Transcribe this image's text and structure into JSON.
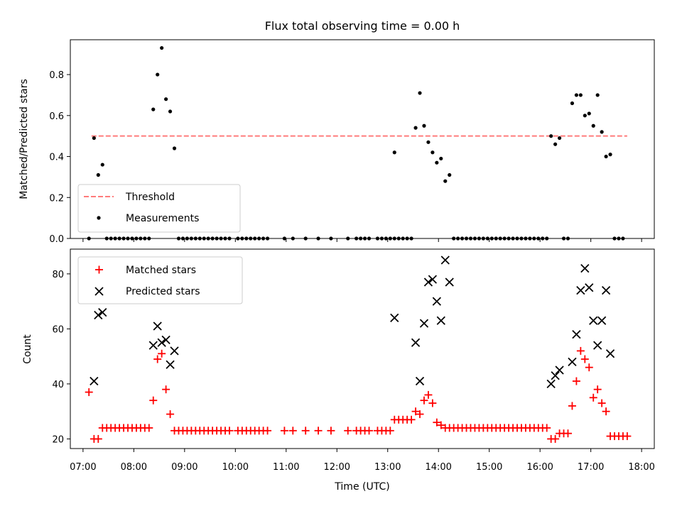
{
  "chart_data": [
    {
      "type": "scatter",
      "title": "Flux total observing time = 0.00 h",
      "ylabel": "Matched/Predicted stars",
      "ylim": [
        0,
        0.97
      ],
      "xlim": [
        "06:45",
        "18:15"
      ],
      "yticks": [
        "0.0",
        "0.2",
        "0.4",
        "0.6",
        "0.8"
      ],
      "grid": false,
      "legend": "lower-left",
      "threshold": {
        "name": "Threshold",
        "y": 0.5,
        "x_start": "07:10",
        "x_end": "17:43",
        "style": "dashed",
        "color": "#ff7b7b"
      },
      "series": [
        {
          "name": "Measurements",
          "marker": "dot",
          "color": "#000000",
          "points": [
            [
              "07:07",
              0.0
            ],
            [
              "07:13",
              0.49
            ],
            [
              "07:18",
              0.31
            ],
            [
              "07:23",
              0.36
            ],
            [
              "07:28",
              0.0
            ],
            [
              "07:33",
              0.0
            ],
            [
              "07:38",
              0.0
            ],
            [
              "07:43",
              0.0
            ],
            [
              "07:48",
              0.0
            ],
            [
              "07:53",
              0.0
            ],
            [
              "07:58",
              0.0
            ],
            [
              "08:03",
              0.0
            ],
            [
              "08:08",
              0.0
            ],
            [
              "08:13",
              0.0
            ],
            [
              "08:18",
              0.0
            ],
            [
              "08:23",
              0.63
            ],
            [
              "08:28",
              0.8
            ],
            [
              "08:33",
              0.93
            ],
            [
              "08:38",
              0.68
            ],
            [
              "08:43",
              0.62
            ],
            [
              "08:48",
              0.44
            ],
            [
              "08:53",
              0.0
            ],
            [
              "08:58",
              0.0
            ],
            [
              "09:03",
              0.0
            ],
            [
              "09:08",
              0.0
            ],
            [
              "09:13",
              0.0
            ],
            [
              "09:18",
              0.0
            ],
            [
              "09:23",
              0.0
            ],
            [
              "09:28",
              0.0
            ],
            [
              "09:33",
              0.0
            ],
            [
              "09:38",
              0.0
            ],
            [
              "09:43",
              0.0
            ],
            [
              "09:48",
              0.0
            ],
            [
              "09:53",
              0.0
            ],
            [
              "10:03",
              0.0
            ],
            [
              "10:08",
              0.0
            ],
            [
              "10:13",
              0.0
            ],
            [
              "10:18",
              0.0
            ],
            [
              "10:23",
              0.0
            ],
            [
              "10:28",
              0.0
            ],
            [
              "10:33",
              0.0
            ],
            [
              "10:38",
              0.0
            ],
            [
              "10:58",
              0.0
            ],
            [
              "11:08",
              0.0
            ],
            [
              "11:23",
              0.0
            ],
            [
              "11:38",
              0.0
            ],
            [
              "11:53",
              0.0
            ],
            [
              "12:13",
              0.0
            ],
            [
              "12:23",
              0.0
            ],
            [
              "12:28",
              0.0
            ],
            [
              "12:33",
              0.0
            ],
            [
              "12:38",
              0.0
            ],
            [
              "12:48",
              0.0
            ],
            [
              "12:53",
              0.0
            ],
            [
              "12:58",
              0.0
            ],
            [
              "13:03",
              0.0
            ],
            [
              "13:08",
              0.0
            ],
            [
              "13:08",
              0.42
            ],
            [
              "13:13",
              0.0
            ],
            [
              "13:18",
              0.0
            ],
            [
              "13:23",
              0.0
            ],
            [
              "13:28",
              0.0
            ],
            [
              "13:33",
              0.54
            ],
            [
              "13:38",
              0.71
            ],
            [
              "13:43",
              0.55
            ],
            [
              "13:48",
              0.47
            ],
            [
              "13:53",
              0.42
            ],
            [
              "13:58",
              0.37
            ],
            [
              "14:03",
              0.39
            ],
            [
              "14:08",
              0.28
            ],
            [
              "14:13",
              0.31
            ],
            [
              "14:18",
              0.0
            ],
            [
              "14:23",
              0.0
            ],
            [
              "14:28",
              0.0
            ],
            [
              "14:33",
              0.0
            ],
            [
              "14:38",
              0.0
            ],
            [
              "14:43",
              0.0
            ],
            [
              "14:48",
              0.0
            ],
            [
              "14:53",
              0.0
            ],
            [
              "14:58",
              0.0
            ],
            [
              "15:03",
              0.0
            ],
            [
              "15:08",
              0.0
            ],
            [
              "15:13",
              0.0
            ],
            [
              "15:18",
              0.0
            ],
            [
              "15:23",
              0.0
            ],
            [
              "15:28",
              0.0
            ],
            [
              "15:33",
              0.0
            ],
            [
              "15:38",
              0.0
            ],
            [
              "15:43",
              0.0
            ],
            [
              "15:48",
              0.0
            ],
            [
              "15:53",
              0.0
            ],
            [
              "15:58",
              0.0
            ],
            [
              "16:03",
              0.0
            ],
            [
              "16:08",
              0.0
            ],
            [
              "16:13",
              0.5
            ],
            [
              "16:18",
              0.46
            ],
            [
              "16:23",
              0.49
            ],
            [
              "16:28",
              0.0
            ],
            [
              "16:33",
              0.0
            ],
            [
              "16:38",
              0.66
            ],
            [
              "16:43",
              0.7
            ],
            [
              "16:48",
              0.7
            ],
            [
              "16:53",
              0.6
            ],
            [
              "16:58",
              0.61
            ],
            [
              "17:03",
              0.55
            ],
            [
              "17:08",
              0.7
            ],
            [
              "17:13",
              0.52
            ],
            [
              "17:18",
              0.4
            ],
            [
              "17:23",
              0.41
            ],
            [
              "17:28",
              0.0
            ],
            [
              "17:33",
              0.0
            ],
            [
              "17:38",
              0.0
            ]
          ]
        }
      ]
    },
    {
      "type": "scatter",
      "xlabel": "Time (UTC)",
      "ylabel": "Count",
      "ylim": [
        16.5,
        89
      ],
      "xlim": [
        "06:45",
        "18:15"
      ],
      "xticks": [
        "07:00",
        "08:00",
        "09:00",
        "10:00",
        "11:00",
        "12:00",
        "13:00",
        "14:00",
        "15:00",
        "16:00",
        "17:00",
        "18:00"
      ],
      "yticks": [
        "20",
        "40",
        "60",
        "80"
      ],
      "grid": false,
      "legend": "top-left",
      "series": [
        {
          "name": "Matched stars",
          "marker": "plus",
          "color": "#ff0000",
          "points": [
            [
              "07:07",
              37
            ],
            [
              "07:13",
              20
            ],
            [
              "07:18",
              20
            ],
            [
              "07:23",
              24
            ],
            [
              "07:28",
              24
            ],
            [
              "07:33",
              24
            ],
            [
              "07:38",
              24
            ],
            [
              "07:43",
              24
            ],
            [
              "07:48",
              24
            ],
            [
              "07:53",
              24
            ],
            [
              "07:58",
              24
            ],
            [
              "08:03",
              24
            ],
            [
              "08:08",
              24
            ],
            [
              "08:13",
              24
            ],
            [
              "08:18",
              24
            ],
            [
              "08:23",
              34
            ],
            [
              "08:28",
              49
            ],
            [
              "08:33",
              51
            ],
            [
              "08:38",
              38
            ],
            [
              "08:43",
              29
            ],
            [
              "08:48",
              23
            ],
            [
              "08:53",
              23
            ],
            [
              "08:58",
              23
            ],
            [
              "09:03",
              23
            ],
            [
              "09:08",
              23
            ],
            [
              "09:13",
              23
            ],
            [
              "09:18",
              23
            ],
            [
              "09:23",
              23
            ],
            [
              "09:28",
              23
            ],
            [
              "09:33",
              23
            ],
            [
              "09:38",
              23
            ],
            [
              "09:43",
              23
            ],
            [
              "09:48",
              23
            ],
            [
              "09:53",
              23
            ],
            [
              "10:03",
              23
            ],
            [
              "10:08",
              23
            ],
            [
              "10:13",
              23
            ],
            [
              "10:18",
              23
            ],
            [
              "10:23",
              23
            ],
            [
              "10:28",
              23
            ],
            [
              "10:33",
              23
            ],
            [
              "10:38",
              23
            ],
            [
              "10:58",
              23
            ],
            [
              "11:08",
              23
            ],
            [
              "11:23",
              23
            ],
            [
              "11:38",
              23
            ],
            [
              "11:53",
              23
            ],
            [
              "12:13",
              23
            ],
            [
              "12:23",
              23
            ],
            [
              "12:28",
              23
            ],
            [
              "12:33",
              23
            ],
            [
              "12:38",
              23
            ],
            [
              "12:48",
              23
            ],
            [
              "12:53",
              23
            ],
            [
              "12:58",
              23
            ],
            [
              "13:03",
              23
            ],
            [
              "13:08",
              27
            ],
            [
              "13:13",
              27
            ],
            [
              "13:18",
              27
            ],
            [
              "13:23",
              27
            ],
            [
              "13:28",
              27
            ],
            [
              "13:33",
              30
            ],
            [
              "13:38",
              29
            ],
            [
              "13:43",
              34
            ],
            [
              "13:48",
              36
            ],
            [
              "13:53",
              33
            ],
            [
              "13:58",
              26
            ],
            [
              "14:03",
              25
            ],
            [
              "14:08",
              24
            ],
            [
              "14:13",
              24
            ],
            [
              "14:18",
              24
            ],
            [
              "14:23",
              24
            ],
            [
              "14:28",
              24
            ],
            [
              "14:33",
              24
            ],
            [
              "14:38",
              24
            ],
            [
              "14:43",
              24
            ],
            [
              "14:48",
              24
            ],
            [
              "14:53",
              24
            ],
            [
              "14:58",
              24
            ],
            [
              "15:03",
              24
            ],
            [
              "15:08",
              24
            ],
            [
              "15:13",
              24
            ],
            [
              "15:18",
              24
            ],
            [
              "15:23",
              24
            ],
            [
              "15:28",
              24
            ],
            [
              "15:33",
              24
            ],
            [
              "15:38",
              24
            ],
            [
              "15:43",
              24
            ],
            [
              "15:48",
              24
            ],
            [
              "15:53",
              24
            ],
            [
              "15:58",
              24
            ],
            [
              "16:03",
              24
            ],
            [
              "16:08",
              24
            ],
            [
              "16:13",
              20
            ],
            [
              "16:18",
              20
            ],
            [
              "16:23",
              22
            ],
            [
              "16:28",
              22
            ],
            [
              "16:33",
              22
            ],
            [
              "16:38",
              32
            ],
            [
              "16:43",
              41
            ],
            [
              "16:48",
              52
            ],
            [
              "16:53",
              49
            ],
            [
              "16:58",
              46
            ],
            [
              "17:03",
              35
            ],
            [
              "17:08",
              38
            ],
            [
              "17:13",
              33
            ],
            [
              "17:18",
              30
            ],
            [
              "17:23",
              21
            ],
            [
              "17:28",
              21
            ],
            [
              "17:33",
              21
            ],
            [
              "17:38",
              21
            ],
            [
              "17:43",
              21
            ]
          ]
        },
        {
          "name": "Predicted stars",
          "marker": "x",
          "color": "#000000",
          "points": [
            [
              "07:13",
              41
            ],
            [
              "07:18",
              65
            ],
            [
              "07:23",
              66
            ],
            [
              "08:23",
              54
            ],
            [
              "08:28",
              61
            ],
            [
              "08:33",
              55
            ],
            [
              "08:38",
              56
            ],
            [
              "08:43",
              47
            ],
            [
              "08:48",
              52
            ],
            [
              "13:08",
              64
            ],
            [
              "13:33",
              55
            ],
            [
              "13:38",
              41
            ],
            [
              "13:43",
              62
            ],
            [
              "13:48",
              77
            ],
            [
              "13:53",
              78
            ],
            [
              "13:58",
              70
            ],
            [
              "14:03",
              63
            ],
            [
              "14:08",
              85
            ],
            [
              "14:13",
              77
            ],
            [
              "16:13",
              40
            ],
            [
              "16:18",
              43
            ],
            [
              "16:23",
              45
            ],
            [
              "16:38",
              48
            ],
            [
              "16:43",
              58
            ],
            [
              "16:48",
              74
            ],
            [
              "16:53",
              82
            ],
            [
              "16:58",
              75
            ],
            [
              "17:03",
              63
            ],
            [
              "17:08",
              54
            ],
            [
              "17:13",
              63
            ],
            [
              "17:18",
              74
            ],
            [
              "17:23",
              51
            ]
          ]
        }
      ]
    }
  ]
}
